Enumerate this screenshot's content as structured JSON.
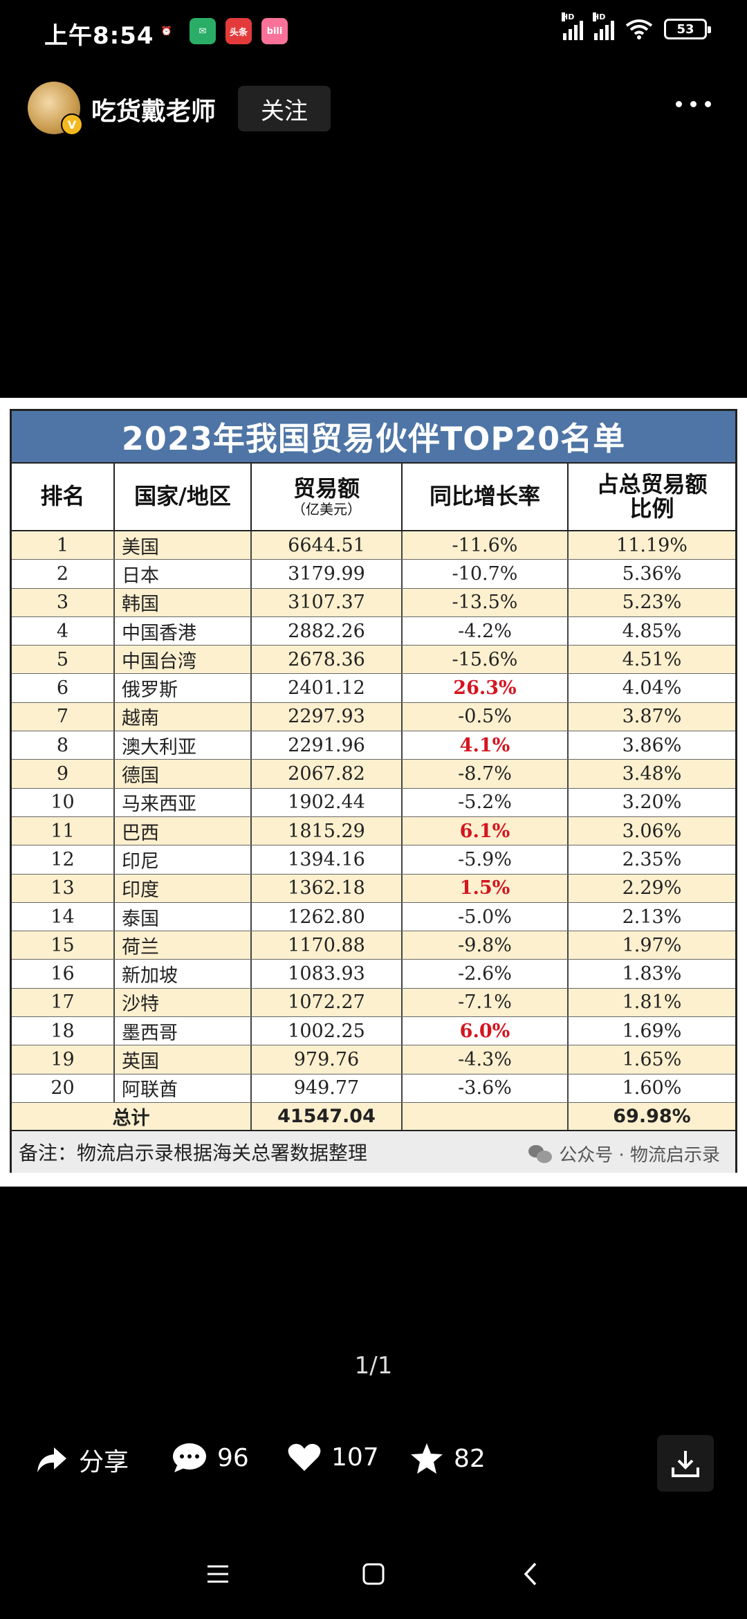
{
  "status": {
    "time": "上午8:54",
    "apps": [
      {
        "icon": "alarm-icon",
        "text": "⏰",
        "color": "#000"
      },
      {
        "icon": "wechat-icon",
        "text": "✉",
        "color": "#2aae67"
      },
      {
        "icon": "toutiao-icon",
        "text": "头条",
        "color": "#e33b3b"
      },
      {
        "icon": "bilibili-icon",
        "text": "bili",
        "color": "#fb7299"
      }
    ],
    "hd_label": "HD",
    "battery": "53"
  },
  "header": {
    "username": "吃货戴老师",
    "follow_label": "关注",
    "avatar_badge": "V"
  },
  "table": {
    "title": "2023年我国贸易伙伴TOP20名单",
    "headers": {
      "rank": "排名",
      "country": "国家/地区",
      "trade": "贸易额",
      "trade_unit": "（亿美元）",
      "growth": "同比增长率",
      "share": "占总贸易额\n比例"
    },
    "rows": [
      {
        "rank": "1",
        "country": "美国",
        "trade": "6644.51",
        "growth": "-11.6%",
        "share": "11.19%",
        "positive": false
      },
      {
        "rank": "2",
        "country": "日本",
        "trade": "3179.99",
        "growth": "-10.7%",
        "share": "5.36%",
        "positive": false
      },
      {
        "rank": "3",
        "country": "韩国",
        "trade": "3107.37",
        "growth": "-13.5%",
        "share": "5.23%",
        "positive": false
      },
      {
        "rank": "4",
        "country": "中国香港",
        "trade": "2882.26",
        "growth": "-4.2%",
        "share": "4.85%",
        "positive": false
      },
      {
        "rank": "5",
        "country": "中国台湾",
        "trade": "2678.36",
        "growth": "-15.6%",
        "share": "4.51%",
        "positive": false
      },
      {
        "rank": "6",
        "country": "俄罗斯",
        "trade": "2401.12",
        "growth": "26.3%",
        "share": "4.04%",
        "positive": true
      },
      {
        "rank": "7",
        "country": "越南",
        "trade": "2297.93",
        "growth": "-0.5%",
        "share": "3.87%",
        "positive": false
      },
      {
        "rank": "8",
        "country": "澳大利亚",
        "trade": "2291.96",
        "growth": "4.1%",
        "share": "3.86%",
        "positive": true
      },
      {
        "rank": "9",
        "country": "德国",
        "trade": "2067.82",
        "growth": "-8.7%",
        "share": "3.48%",
        "positive": false
      },
      {
        "rank": "10",
        "country": "马来西亚",
        "trade": "1902.44",
        "growth": "-5.2%",
        "share": "3.20%",
        "positive": false
      },
      {
        "rank": "11",
        "country": "巴西",
        "trade": "1815.29",
        "growth": "6.1%",
        "share": "3.06%",
        "positive": true
      },
      {
        "rank": "12",
        "country": "印尼",
        "trade": "1394.16",
        "growth": "-5.9%",
        "share": "2.35%",
        "positive": false
      },
      {
        "rank": "13",
        "country": "印度",
        "trade": "1362.18",
        "growth": "1.5%",
        "share": "2.29%",
        "positive": true
      },
      {
        "rank": "14",
        "country": "泰国",
        "trade": "1262.80",
        "growth": "-5.0%",
        "share": "2.13%",
        "positive": false
      },
      {
        "rank": "15",
        "country": "荷兰",
        "trade": "1170.88",
        "growth": "-9.8%",
        "share": "1.97%",
        "positive": false
      },
      {
        "rank": "16",
        "country": "新加坡",
        "trade": "1083.93",
        "growth": "-2.6%",
        "share": "1.83%",
        "positive": false
      },
      {
        "rank": "17",
        "country": "沙特",
        "trade": "1072.27",
        "growth": "-7.1%",
        "share": "1.81%",
        "positive": false
      },
      {
        "rank": "18",
        "country": "墨西哥",
        "trade": "1002.25",
        "growth": "6.0%",
        "share": "1.69%",
        "positive": true
      },
      {
        "rank": "19",
        "country": "英国",
        "trade": "979.76",
        "growth": "-4.3%",
        "share": "1.65%",
        "positive": false
      },
      {
        "rank": "20",
        "country": "阿联酋",
        "trade": "949.77",
        "growth": "-3.6%",
        "share": "1.60%",
        "positive": false
      }
    ],
    "total": {
      "label": "总计",
      "trade": "41547.04",
      "share": "69.98%"
    },
    "note": "备注：物流启示录根据海关总署数据整理",
    "source": "公众号 · 物流启示录",
    "colors": {
      "title_bg": "#4e75a5",
      "stripe": "#fdf0cf",
      "positive": "#d4151f"
    }
  },
  "pager": "1/1",
  "actions": {
    "share_label": "分享",
    "comments": "96",
    "likes": "107",
    "favorites": "82"
  }
}
